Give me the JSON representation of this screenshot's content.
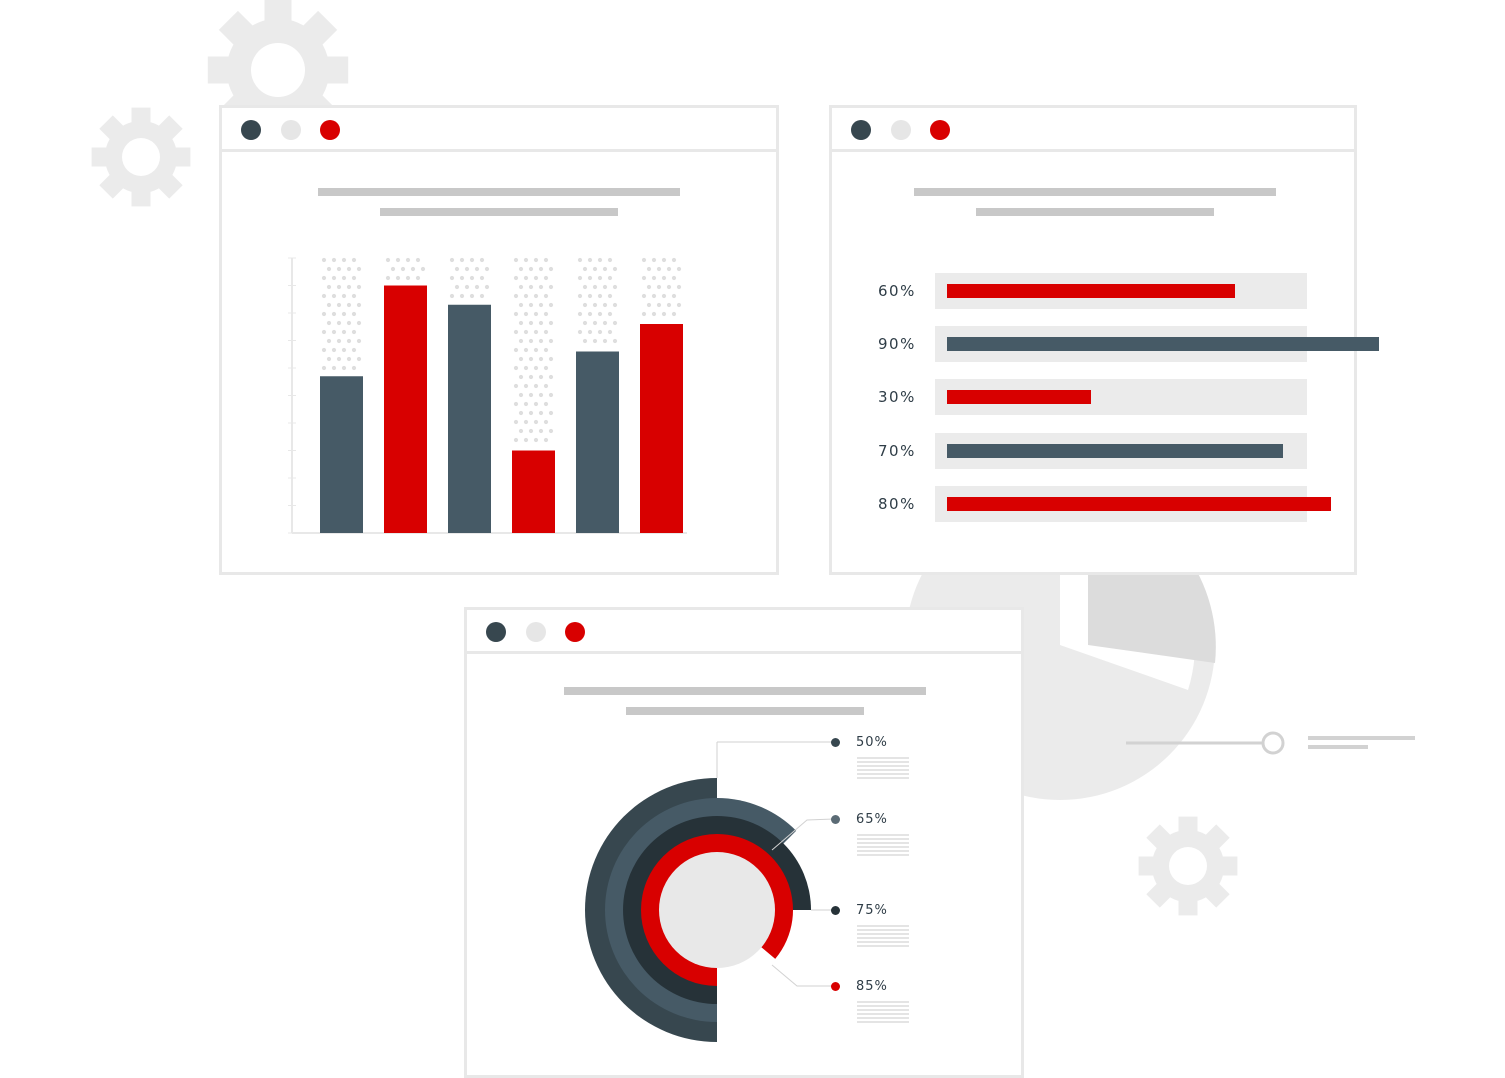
{
  "colors": {
    "dark": "#465a66",
    "red": "#d80000",
    "light_gray": "#e8e8e8",
    "dot_dark": "#37474f",
    "dot_light": "#e6e6e6",
    "dot_red": "#d80000"
  },
  "icons": [
    "gear-icon",
    "pie-chart-icon",
    "slider-icon"
  ],
  "bar_window": {
    "chart_data": {
      "type": "bar",
      "categories": [
        "",
        "",
        "",
        "",
        "",
        ""
      ],
      "values": [
        57,
        90,
        83,
        30,
        66,
        76
      ],
      "colors": [
        "dark",
        "red",
        "dark",
        "red",
        "dark",
        "red"
      ],
      "ylim": [
        0,
        100
      ],
      "title": "",
      "xlabel": "",
      "ylabel": ""
    }
  },
  "progress_window": {
    "items": [
      {
        "label": "60%",
        "value": 0.6,
        "color": "red"
      },
      {
        "label": "90%",
        "value": 0.9,
        "color": "dark"
      },
      {
        "label": "30%",
        "value": 0.3,
        "color": "red"
      },
      {
        "label": "70%",
        "value": 0.7,
        "color": "dark"
      },
      {
        "label": "80%",
        "value": 0.8,
        "color": "red"
      }
    ]
  },
  "donut_window": {
    "legend": [
      {
        "label": "50%",
        "value": 50,
        "color": "#465a66"
      },
      {
        "label": "65%",
        "value": 65,
        "color": "#5b6b75"
      },
      {
        "label": "75%",
        "value": 75,
        "color": "#263238"
      },
      {
        "label": "85%",
        "value": 85,
        "color": "#d80000"
      }
    ]
  }
}
